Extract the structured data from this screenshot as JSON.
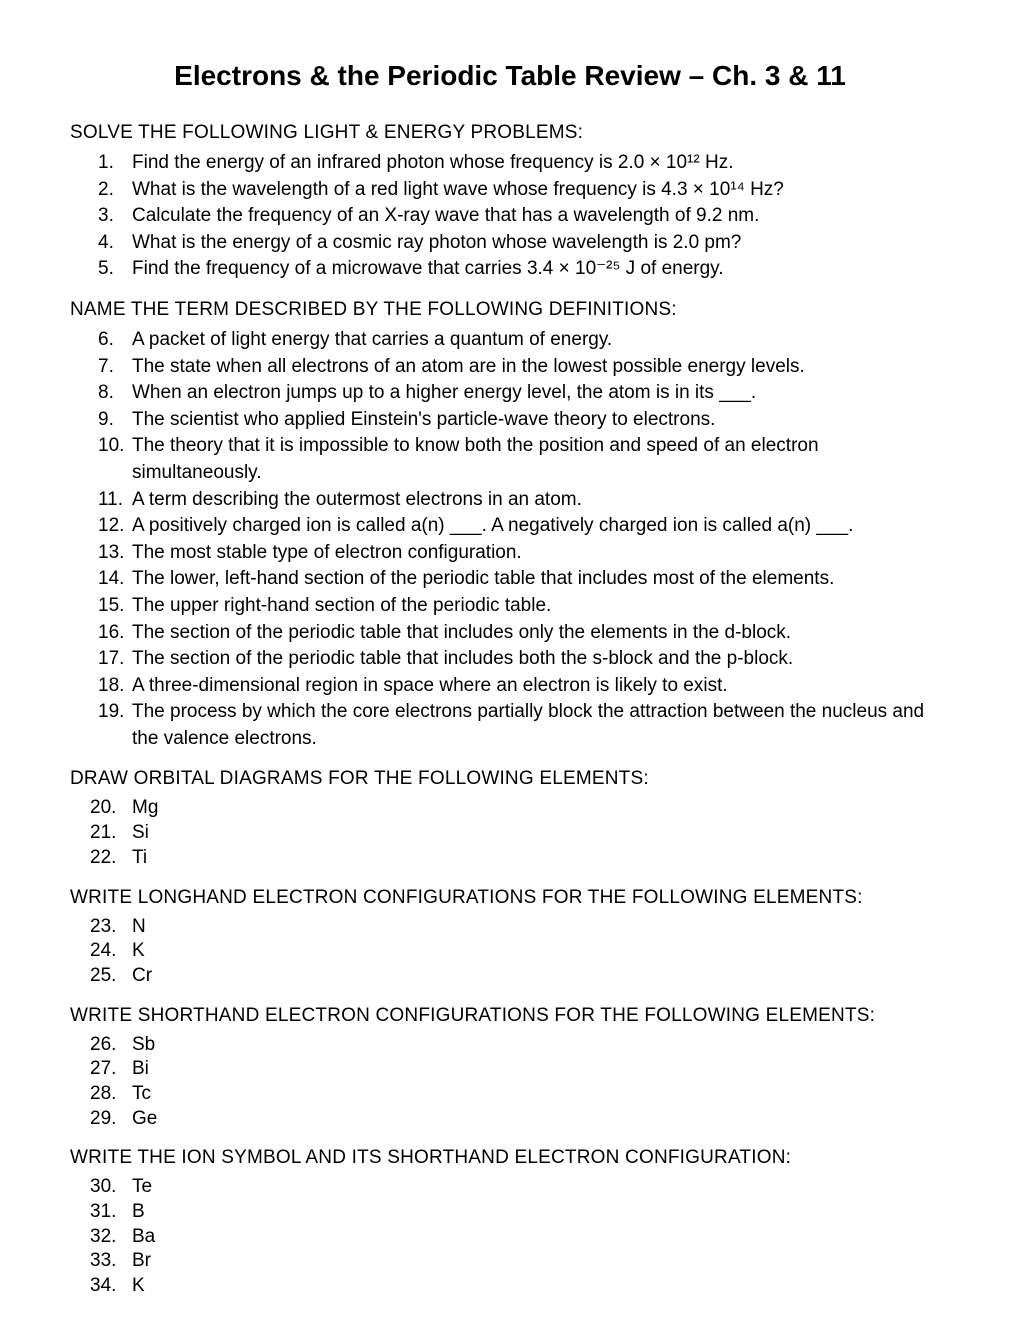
{
  "title": "Electrons & the Periodic Table Review – Ch. 3 & 11",
  "sections": [
    {
      "heading": "SOLVE THE FOLLOWING LIGHT & ENERGY PROBLEMS:",
      "start": 0,
      "items": [
        "Find the energy of an infrared photon whose frequency is 2.0 × 10¹² Hz.",
        "What is the wavelength of a red light wave whose frequency is 4.3 × 10¹⁴ Hz?",
        "Calculate the frequency of an X-ray wave that has a wavelength of 9.2 nm.",
        "What is the energy of a cosmic ray photon whose wavelength is 2.0 pm?",
        "Find the frequency of a microwave that carries 3.4 × 10⁻²⁵ J of energy."
      ]
    },
    {
      "heading": "NAME THE TERM DESCRIBED BY THE FOLLOWING DEFINITIONS:",
      "start": 5,
      "items": [
        "A packet of light energy that carries a quantum of energy.",
        "The state when all electrons of an atom are in the lowest possible energy levels.",
        "When an electron jumps up to a higher energy level, the atom is in its ___.",
        "The scientist who applied Einstein's particle-wave theory to electrons.",
        "The theory that it is impossible to know both the position and speed of an electron simultaneously.",
        "A term describing the outermost electrons in an atom.",
        "A positively charged ion is called a(n) ___.   A negatively charged ion is called a(n) ___.",
        "The most stable type of electron configuration.",
        "The lower, left-hand section of the periodic table that includes most of the elements.",
        "The upper right-hand section of the periodic table.",
        "The section of the periodic table that includes only the elements in the d-block.",
        "The section of the periodic table that includes both the s-block and the p-block.",
        "A three-dimensional region in space where an electron is likely to exist.",
        "The process by which the core electrons partially block the attraction between the nucleus and the valence electrons."
      ]
    },
    {
      "heading": "DRAW ORBITAL DIAGRAMS FOR THE FOLLOWING ELEMENTS:",
      "start": 19,
      "items": [
        "Mg",
        "Si",
        "Ti"
      ]
    },
    {
      "heading": "WRITE LONGHAND ELECTRON CONFIGURATIONS FOR THE FOLLOWING ELEMENTS:",
      "start": 22,
      "items": [
        "N",
        "K",
        "Cr"
      ]
    },
    {
      "heading": "WRITE SHORTHAND ELECTRON CONFIGURATIONS FOR THE FOLLOWING ELEMENTS:",
      "start": 25,
      "items": [
        "Sb",
        "Bi",
        "Tc",
        "Ge"
      ]
    },
    {
      "heading": "WRITE THE ION SYMBOL AND ITS SHORTHAND ELECTRON CONFIGURATION:",
      "start": 29,
      "items": [
        "Te",
        "B",
        "Ba",
        "Br",
        "K"
      ]
    }
  ],
  "style": {
    "background_color": "#ffffff",
    "text_color": "#000000",
    "title_fontsize": 28,
    "heading_fontsize": 19,
    "body_fontsize": 19,
    "font_family": "Arial"
  }
}
